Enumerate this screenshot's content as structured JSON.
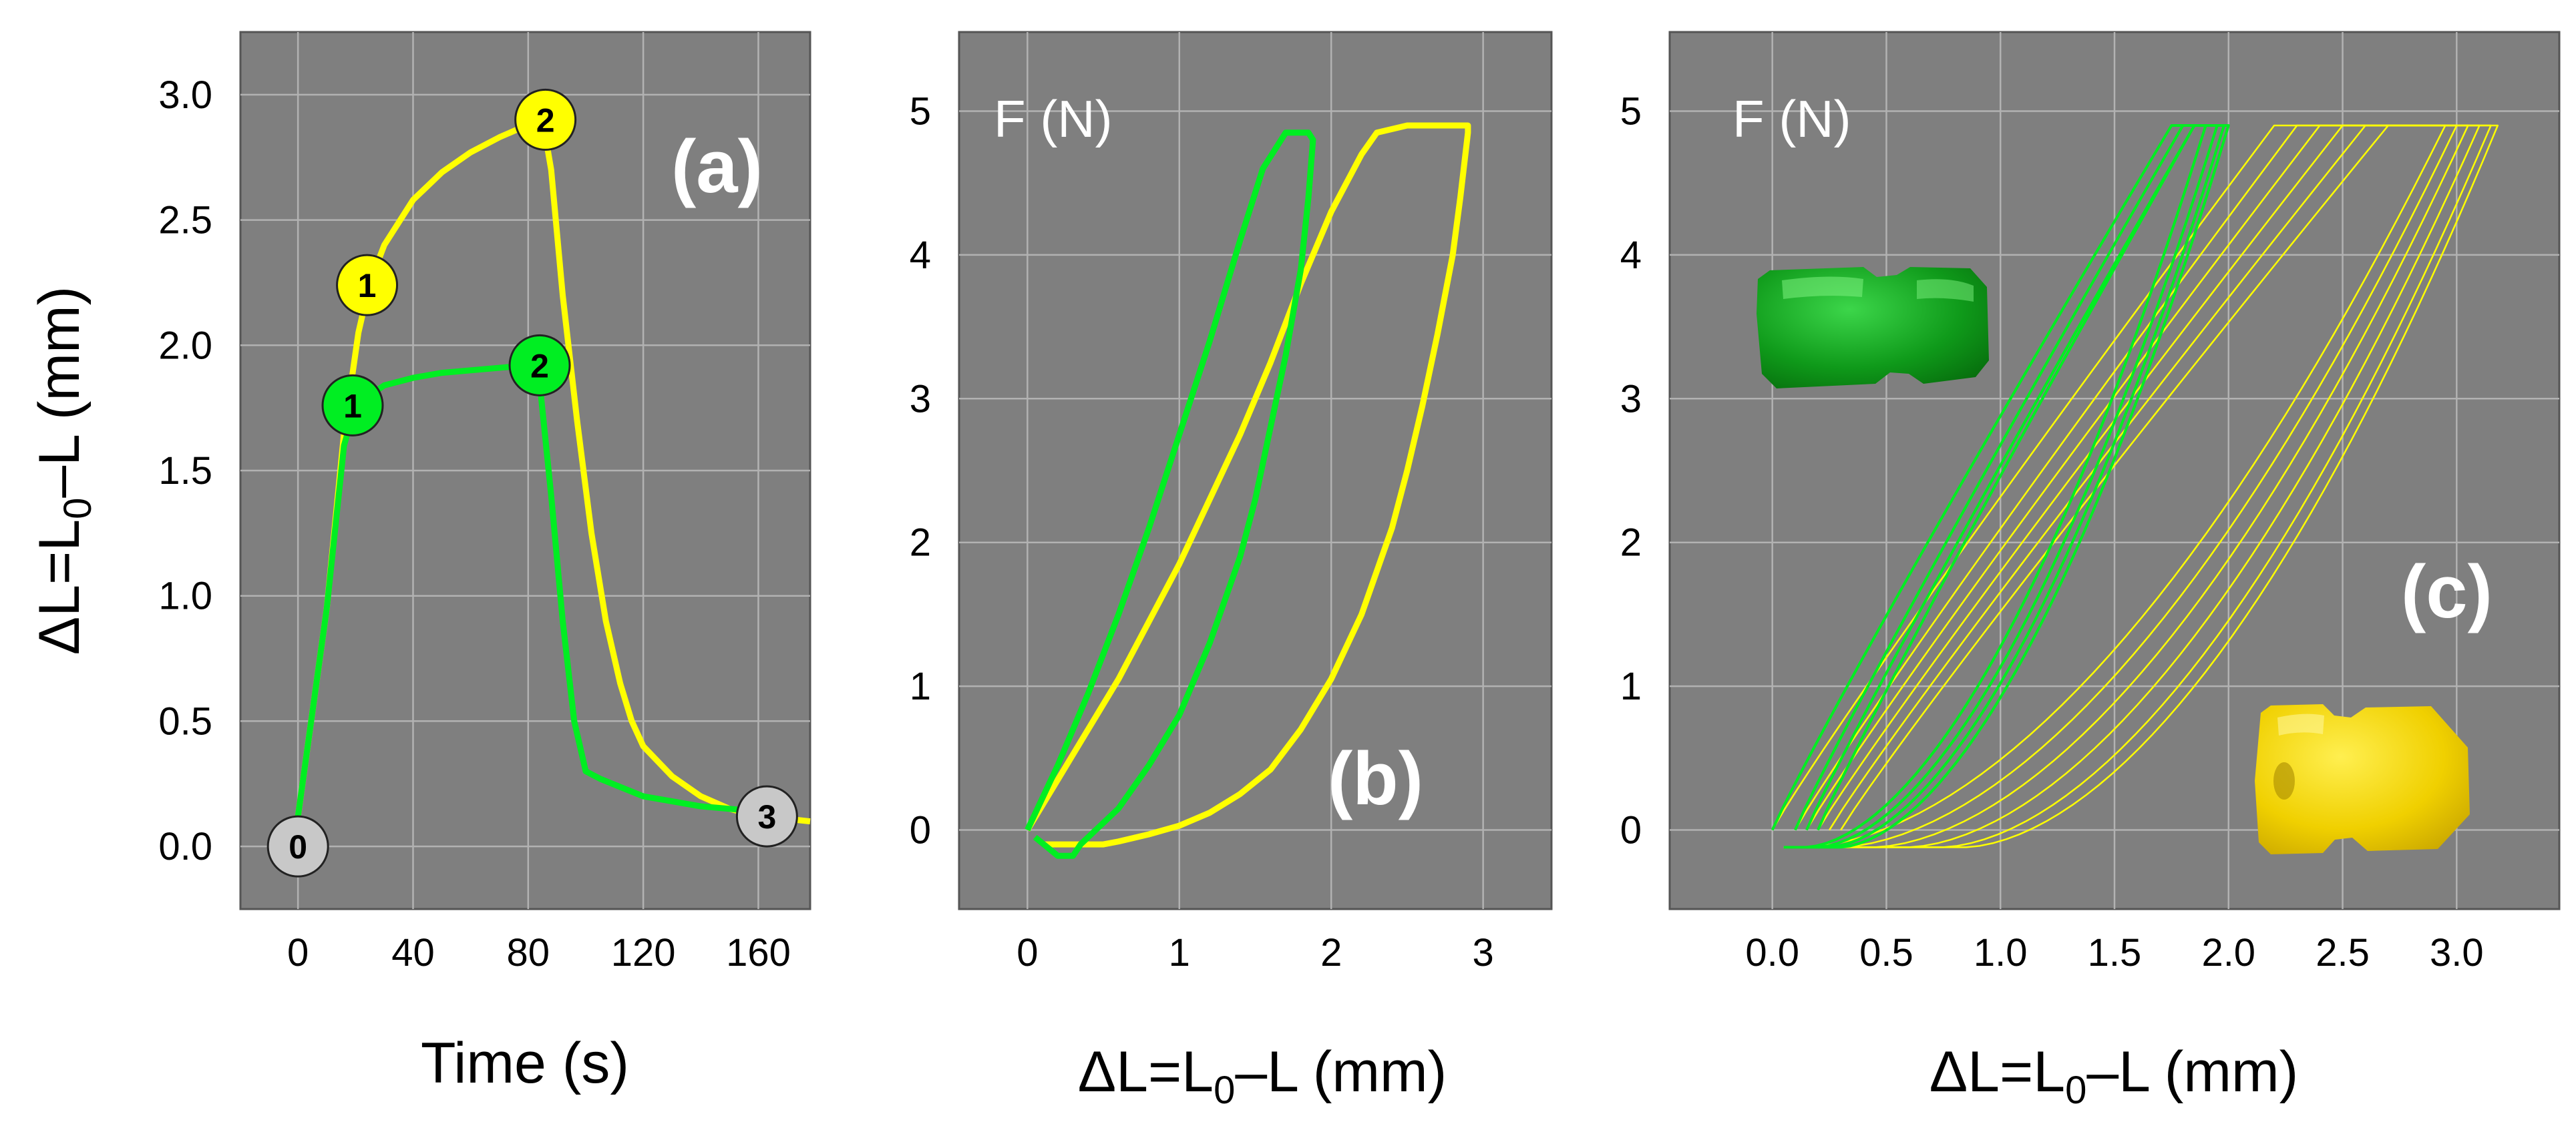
{
  "colors": {
    "plot_bg": "#7f7f7f",
    "grid": "#b2b2b2",
    "yellow": "#ffff00",
    "green": "#00ee22",
    "marker_gray": "#c8c8c8"
  },
  "chart_data": [
    {
      "type": "line",
      "panel_label": "(a)",
      "xlabel": "Time (s)",
      "ylabel_parts": [
        "ΔL=L",
        "0",
        "–L (mm)"
      ],
      "xlim": [
        -20,
        178
      ],
      "ylim": [
        -0.25,
        3.25
      ],
      "x_ticks": [
        0,
        40,
        80,
        120,
        160
      ],
      "y_ticks": [
        0.0,
        0.5,
        1.0,
        1.5,
        2.0,
        2.5,
        3.0
      ],
      "y_tick_labels": [
        "0.0",
        "0.5",
        "1.0",
        "1.5",
        "2.0",
        "2.5",
        "3.0"
      ],
      "series": [
        {
          "color": "yellow",
          "x": [
            0,
            10,
            16,
            21,
            25,
            30,
            40,
            50,
            60,
            70,
            80,
            85,
            88,
            92,
            97,
            102,
            107,
            112,
            116,
            120,
            130,
            140,
            150,
            160,
            170,
            178
          ],
          "y": [
            0.12,
            0.95,
            1.65,
            2.05,
            2.25,
            2.4,
            2.58,
            2.69,
            2.77,
            2.83,
            2.88,
            2.9,
            2.7,
            2.2,
            1.7,
            1.25,
            0.9,
            0.65,
            0.5,
            0.4,
            0.28,
            0.2,
            0.15,
            0.12,
            0.11,
            0.1
          ]
        },
        {
          "color": "green",
          "x": [
            0,
            10,
            16,
            20,
            25,
            30,
            40,
            50,
            60,
            70,
            80,
            84,
            88,
            92,
            96,
            100,
            105,
            120,
            140,
            160,
            170
          ],
          "y": [
            0.12,
            0.95,
            1.6,
            1.76,
            1.8,
            1.84,
            1.87,
            1.89,
            1.9,
            1.91,
            1.92,
            1.85,
            1.4,
            0.9,
            0.5,
            0.3,
            0.27,
            0.2,
            0.16,
            0.14,
            0.13
          ]
        }
      ],
      "markers": [
        {
          "label": "0",
          "x": 0,
          "y": 0.0,
          "color": "marker_gray"
        },
        {
          "label": "1",
          "x": 24,
          "y": 2.24,
          "color": "yellow"
        },
        {
          "label": "2",
          "x": 86,
          "y": 2.9,
          "color": "yellow"
        },
        {
          "label": "1",
          "x": 19,
          "y": 1.76,
          "color": "green"
        },
        {
          "label": "2",
          "x": 84,
          "y": 1.92,
          "color": "green"
        },
        {
          "label": "3",
          "x": 163,
          "y": 0.12,
          "color": "marker_gray"
        }
      ]
    },
    {
      "type": "line",
      "panel_label": "(b)",
      "inner_label": "F (N)",
      "xlabel_parts": [
        "ΔL=L",
        "0",
        "–L (mm)"
      ],
      "xlim": [
        -0.45,
        3.45
      ],
      "ylim": [
        -0.55,
        5.55
      ],
      "x_ticks": [
        0,
        1,
        2,
        3
      ],
      "y_ticks": [
        0,
        1,
        2,
        3,
        4,
        5
      ],
      "series": [
        {
          "color": "yellow",
          "x": [
            0.0,
            0.2,
            0.4,
            0.6,
            0.8,
            1.0,
            1.2,
            1.4,
            1.6,
            1.8,
            2.0,
            2.2,
            2.3,
            2.5,
            2.7,
            2.9,
            2.9,
            2.85,
            2.8,
            2.7,
            2.6,
            2.5,
            2.4,
            2.2,
            2.0,
            1.8,
            1.6,
            1.4,
            1.2,
            1.0,
            0.8,
            0.6,
            0.5,
            0.3,
            0.1
          ],
          "y": [
            0.0,
            0.35,
            0.7,
            1.05,
            1.45,
            1.85,
            2.3,
            2.75,
            3.25,
            3.8,
            4.3,
            4.7,
            4.85,
            4.9,
            4.9,
            4.9,
            4.85,
            4.4,
            4.0,
            3.45,
            2.95,
            2.5,
            2.1,
            1.5,
            1.05,
            0.7,
            0.42,
            0.25,
            0.12,
            0.03,
            -0.03,
            -0.08,
            -0.1,
            -0.1,
            -0.1
          ]
        },
        {
          "color": "green",
          "x": [
            0.0,
            0.2,
            0.4,
            0.6,
            0.8,
            1.0,
            1.2,
            1.4,
            1.55,
            1.7,
            1.85,
            1.88,
            1.85,
            1.8,
            1.7,
            1.6,
            1.5,
            1.4,
            1.2,
            1.0,
            0.8,
            0.6,
            0.45,
            0.35,
            0.3,
            0.2,
            0.05
          ],
          "y": [
            0.0,
            0.45,
            0.95,
            1.5,
            2.1,
            2.75,
            3.4,
            4.1,
            4.6,
            4.85,
            4.85,
            4.8,
            4.4,
            3.9,
            3.3,
            2.8,
            2.3,
            1.9,
            1.3,
            0.8,
            0.45,
            0.15,
            0.0,
            -0.1,
            -0.18,
            -0.18,
            -0.05
          ]
        }
      ]
    },
    {
      "type": "line",
      "panel_label": "(c)",
      "inner_label": "F (N)",
      "xlabel_parts": [
        "ΔL=L",
        "0",
        "–L (mm)"
      ],
      "xlim": [
        -0.45,
        3.45
      ],
      "ylim": [
        -0.55,
        5.55
      ],
      "x_ticks": [
        0.0,
        0.5,
        1.0,
        1.5,
        2.0,
        2.5,
        3.0
      ],
      "x_tick_labels": [
        "0.0",
        "0.5",
        "1.0",
        "1.5",
        "2.0",
        "2.5",
        "3.0"
      ],
      "y_ticks": [
        0,
        1,
        2,
        3,
        4,
        5
      ],
      "cycles": [
        {
          "color": "yellow",
          "start": 0.0,
          "plateau_start": 2.2,
          "max": 2.95,
          "min": 0.15
        },
        {
          "color": "yellow",
          "start": 0.1,
          "plateau_start": 2.3,
          "max": 3.0,
          "min": 0.3
        },
        {
          "color": "yellow",
          "start": 0.15,
          "plateau_start": 2.4,
          "max": 3.05,
          "min": 0.45
        },
        {
          "color": "yellow",
          "start": 0.2,
          "plateau_start": 2.5,
          "max": 3.1,
          "min": 0.6
        },
        {
          "color": "yellow",
          "start": 0.25,
          "plateau_start": 2.6,
          "max": 3.15,
          "min": 0.75
        },
        {
          "color": "yellow",
          "start": 0.3,
          "plateau_start": 2.7,
          "max": 3.18,
          "min": 0.85
        },
        {
          "color": "green",
          "start": 0.0,
          "plateau_start": 1.75,
          "max": 1.9,
          "min": 0.15
        },
        {
          "color": "green",
          "start": 0.1,
          "plateau_start": 1.8,
          "max": 1.95,
          "min": 0.2
        },
        {
          "color": "green",
          "start": 0.15,
          "plateau_start": 1.85,
          "max": 1.98,
          "min": 0.25
        },
        {
          "color": "green",
          "start": 0.2,
          "plateau_start": 1.85,
          "max": 2.0,
          "min": 0.3
        }
      ]
    }
  ]
}
